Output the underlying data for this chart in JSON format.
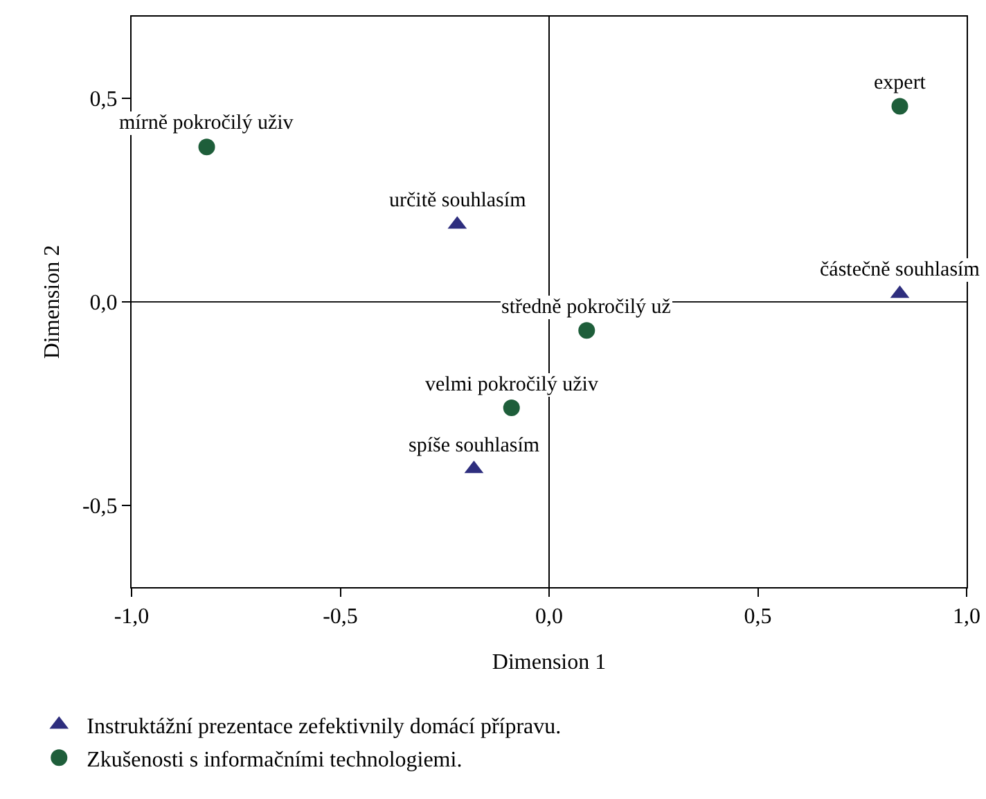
{
  "chart_data": {
    "type": "scatter",
    "xlabel": "Dimension 1",
    "ylabel": "Dimension 2",
    "xlim": [
      -1,
      1
    ],
    "ylim": [
      -0.7,
      0.7
    ],
    "xticks": [
      {
        "value": -1,
        "label": "-1,0"
      },
      {
        "value": -0.5,
        "label": "-0,5"
      },
      {
        "value": 0,
        "label": "0,0"
      },
      {
        "value": 0.5,
        "label": "0,5"
      },
      {
        "value": 1,
        "label": "1,0"
      }
    ],
    "yticks": [
      {
        "value": -0.5,
        "label": "-0,5"
      },
      {
        "value": 0,
        "label": "0,0"
      },
      {
        "value": 0.5,
        "label": "0,5"
      }
    ],
    "grid": false,
    "legend": "bottom left",
    "series": [
      {
        "name": "Instruktážní prezentace zefektivnily domácí přípravu.",
        "color": "#2e2e7e",
        "marker": "triangle",
        "x": [
          -0.22,
          0.84,
          -0.18
        ],
        "values": [
          0.19,
          0.02,
          -0.41
        ]
      },
      {
        "name": "Zkušenosti s informačními technologiemi.",
        "color": "#1e5e3a",
        "marker": "circle",
        "x": [
          -0.82,
          0.84,
          0.09,
          -0.09
        ],
        "values": [
          0.38,
          0.48,
          -0.07,
          -0.26
        ]
      }
    ],
    "ref_lines": [
      {
        "axis": "x",
        "value": 0,
        "color": "#000000"
      },
      {
        "axis": "y",
        "value": 0,
        "color": "#1a1a1a"
      }
    ],
    "annotations": [
      {
        "text": "určitě souhlasím",
        "x": -0.22,
        "y": 0.19
      },
      {
        "text": "částečně souhlasím",
        "x": 0.84,
        "y": 0.02
      },
      {
        "text": "spíše souhlasím",
        "x": -0.18,
        "y": -0.41
      },
      {
        "text": "mírně pokročilý uživ",
        "x": -0.82,
        "y": 0.38
      },
      {
        "text": "expert",
        "x": 0.84,
        "y": 0.48
      },
      {
        "text": "středně pokročilý už",
        "x": 0.09,
        "y": -0.07
      },
      {
        "text": "velmi pokročilý uživ",
        "x": -0.09,
        "y": -0.26
      }
    ]
  }
}
